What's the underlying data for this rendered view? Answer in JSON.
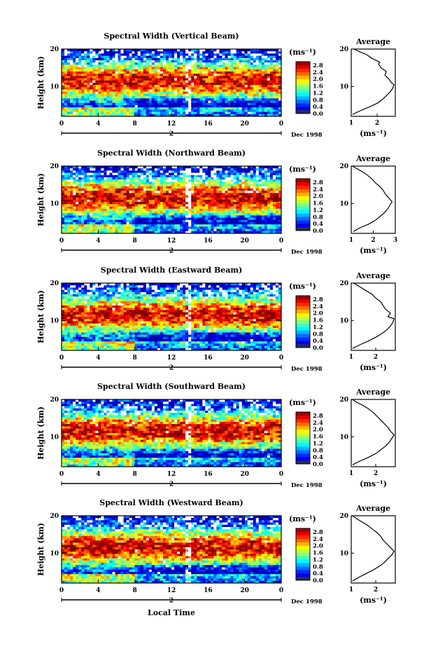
{
  "chart_data": [
    {
      "type": "heatmap",
      "title": "Spectral Width (Vertical Beam)",
      "xlabel": "Local Time",
      "ylabel": "Height (km)",
      "x_ticks": [
        "0",
        "4",
        "8",
        "12",
        "16",
        "20",
        "0"
      ],
      "y_ticks": [
        "10",
        "20"
      ],
      "xlim": [
        0,
        24
      ],
      "ylim": [
        2,
        20
      ],
      "day_marker": "2",
      "date_label": "Dec 1998",
      "colorbar": {
        "unit": "(ms⁻¹)",
        "ticks": [
          "0.0",
          "0.4",
          "0.8",
          "1.2",
          "1.6",
          "2.0",
          "2.4",
          "2.8"
        ],
        "range": [
          0,
          3.0
        ]
      },
      "average": {
        "title": "Average",
        "xlabel": "(ms⁻¹)",
        "x_ticks": [
          "1",
          "2"
        ],
        "xlim": [
          1,
          2.7
        ],
        "y_ticks": [
          "10",
          "20"
        ],
        "profile": [
          [
            1.05,
            2.5
          ],
          [
            1.35,
            3.5
          ],
          [
            1.7,
            4.5
          ],
          [
            2.0,
            5.5
          ],
          [
            2.2,
            6.5
          ],
          [
            2.35,
            7.5
          ],
          [
            2.5,
            8.5
          ],
          [
            2.6,
            9.5
          ],
          [
            2.65,
            10.5
          ],
          [
            2.55,
            11.0
          ],
          [
            2.45,
            12.0
          ],
          [
            2.3,
            13.0
          ],
          [
            2.35,
            14.0
          ],
          [
            2.15,
            15.0
          ],
          [
            2.05,
            16.0
          ],
          [
            2.1,
            16.5
          ],
          [
            1.8,
            17.5
          ],
          [
            1.6,
            18.5
          ],
          [
            1.35,
            19.2
          ],
          [
            1.1,
            20.0
          ]
        ]
      }
    },
    {
      "type": "heatmap",
      "title": "Spectral Width (Northward Beam)",
      "xlabel": "Local Time",
      "ylabel": "Height (km)",
      "x_ticks": [
        "0",
        "4",
        "8",
        "12",
        "16",
        "20",
        "0"
      ],
      "y_ticks": [
        "10",
        "20"
      ],
      "xlim": [
        0,
        24
      ],
      "ylim": [
        2,
        20
      ],
      "day_marker": "2",
      "date_label": "Dec 1998",
      "colorbar": {
        "unit": "(ms⁻¹)",
        "ticks": [
          "0.0",
          "0.4",
          "0.8",
          "1.2",
          "1.6",
          "2.0",
          "2.4",
          "2.8"
        ],
        "range": [
          0,
          3.0
        ]
      },
      "average": {
        "title": "Average",
        "xlabel": "(ms⁻¹)",
        "x_ticks": [
          "1",
          "2",
          "3"
        ],
        "xlim": [
          1,
          3
        ],
        "y_ticks": [
          "10",
          "20"
        ],
        "profile": [
          [
            1.1,
            2.5
          ],
          [
            1.4,
            3.5
          ],
          [
            1.8,
            4.5
          ],
          [
            2.1,
            5.5
          ],
          [
            2.3,
            6.5
          ],
          [
            2.5,
            7.5
          ],
          [
            2.65,
            8.5
          ],
          [
            2.75,
            9.5
          ],
          [
            2.85,
            10.5
          ],
          [
            2.7,
            11.5
          ],
          [
            2.55,
            12.5
          ],
          [
            2.45,
            13.5
          ],
          [
            2.3,
            14.5
          ],
          [
            2.1,
            15.5
          ],
          [
            1.95,
            16.5
          ],
          [
            1.75,
            17.5
          ],
          [
            1.5,
            18.5
          ],
          [
            1.25,
            19.3
          ],
          [
            1.05,
            20.0
          ]
        ]
      }
    },
    {
      "type": "heatmap",
      "title": "Spectral Width (Eastward Beam)",
      "xlabel": "Local Time",
      "ylabel": "Height (km)",
      "x_ticks": [
        "0",
        "4",
        "8",
        "12",
        "16",
        "20",
        "0"
      ],
      "y_ticks": [
        "10",
        "20"
      ],
      "xlim": [
        0,
        24
      ],
      "ylim": [
        2,
        20
      ],
      "day_marker": "2",
      "date_label": "Dec 1998",
      "colorbar": {
        "unit": "(ms⁻¹)",
        "ticks": [
          "0.0",
          "0.4",
          "0.8",
          "1.2",
          "1.6",
          "2.0",
          "2.4",
          "2.8"
        ],
        "range": [
          0,
          3.0
        ]
      },
      "average": {
        "title": "Average",
        "xlabel": "(ms⁻¹)",
        "x_ticks": [
          "1",
          "2"
        ],
        "xlim": [
          1,
          2.8
        ],
        "y_ticks": [
          "10",
          "20"
        ],
        "profile": [
          [
            1.05,
            2.5
          ],
          [
            1.35,
            3.5
          ],
          [
            1.7,
            4.5
          ],
          [
            2.0,
            5.5
          ],
          [
            2.25,
            6.5
          ],
          [
            2.45,
            7.5
          ],
          [
            2.6,
            8.5
          ],
          [
            2.7,
            9.5
          ],
          [
            2.75,
            10.5
          ],
          [
            2.5,
            11.0
          ],
          [
            2.6,
            12.0
          ],
          [
            2.4,
            13.0
          ],
          [
            2.3,
            14.0
          ],
          [
            2.2,
            15.0
          ],
          [
            2.0,
            16.0
          ],
          [
            1.85,
            17.0
          ],
          [
            1.6,
            18.0
          ],
          [
            1.35,
            19.0
          ],
          [
            1.1,
            20.0
          ]
        ]
      }
    },
    {
      "type": "heatmap",
      "title": "Spectral Width (Southward Beam)",
      "xlabel": "Local Time",
      "ylabel": "Height (km)",
      "x_ticks": [
        "0",
        "4",
        "8",
        "12",
        "16",
        "20",
        "0"
      ],
      "y_ticks": [
        "10",
        "20"
      ],
      "xlim": [
        0,
        24
      ],
      "ylim": [
        2,
        20
      ],
      "day_marker": "2",
      "date_label": "Dec 1998",
      "colorbar": {
        "unit": "(ms⁻¹)",
        "ticks": [
          "0.0",
          "0.4",
          "0.8",
          "1.2",
          "1.6",
          "2.0",
          "2.4",
          "2.8"
        ],
        "range": [
          0,
          3.0
        ]
      },
      "average": {
        "title": "Average",
        "xlabel": "(ms⁻¹)",
        "x_ticks": [
          "1",
          "2"
        ],
        "xlim": [
          1,
          2.8
        ],
        "y_ticks": [
          "10",
          "20"
        ],
        "profile": [
          [
            1.05,
            2.5
          ],
          [
            1.35,
            3.5
          ],
          [
            1.7,
            4.5
          ],
          [
            2.0,
            5.5
          ],
          [
            2.2,
            6.5
          ],
          [
            2.4,
            7.5
          ],
          [
            2.55,
            8.5
          ],
          [
            2.65,
            9.5
          ],
          [
            2.75,
            10.5
          ],
          [
            2.6,
            11.5
          ],
          [
            2.5,
            12.5
          ],
          [
            2.35,
            13.5
          ],
          [
            2.2,
            14.5
          ],
          [
            2.05,
            15.5
          ],
          [
            1.9,
            16.5
          ],
          [
            1.7,
            17.5
          ],
          [
            1.45,
            18.5
          ],
          [
            1.2,
            19.3
          ],
          [
            1.05,
            20.0
          ]
        ]
      }
    },
    {
      "type": "heatmap",
      "title": "Spectral Width (Westward Beam)",
      "xlabel": "Local Time",
      "ylabel": "Height (km)",
      "x_ticks": [
        "0",
        "4",
        "8",
        "12",
        "16",
        "20",
        "0"
      ],
      "y_ticks": [
        "10",
        "20"
      ],
      "xlim": [
        0,
        24
      ],
      "ylim": [
        2,
        20
      ],
      "day_marker": "2",
      "date_label": "Dec 1998",
      "colorbar": {
        "unit": "(ms⁻¹)",
        "ticks": [
          "0.0",
          "0.4",
          "0.8",
          "1.2",
          "1.6",
          "2.0",
          "2.4",
          "2.8"
        ],
        "range": [
          0,
          3.0
        ]
      },
      "average": {
        "title": "Average",
        "xlabel": "(ms⁻¹)",
        "x_ticks": [
          "1",
          "2"
        ],
        "xlim": [
          1,
          2.8
        ],
        "y_ticks": [
          "10",
          "20"
        ],
        "profile": [
          [
            1.05,
            2.5
          ],
          [
            1.3,
            3.5
          ],
          [
            1.6,
            4.5
          ],
          [
            1.9,
            5.5
          ],
          [
            2.15,
            6.5
          ],
          [
            2.35,
            7.5
          ],
          [
            2.5,
            8.5
          ],
          [
            2.65,
            9.5
          ],
          [
            2.75,
            10.5
          ],
          [
            2.6,
            11.5
          ],
          [
            2.45,
            12.5
          ],
          [
            2.3,
            13.5
          ],
          [
            2.2,
            14.5
          ],
          [
            2.05,
            15.5
          ],
          [
            1.85,
            16.5
          ],
          [
            1.65,
            17.5
          ],
          [
            1.4,
            18.5
          ],
          [
            1.2,
            19.3
          ],
          [
            1.05,
            20.0
          ]
        ]
      }
    }
  ],
  "shared_xlabel": "Local Time"
}
